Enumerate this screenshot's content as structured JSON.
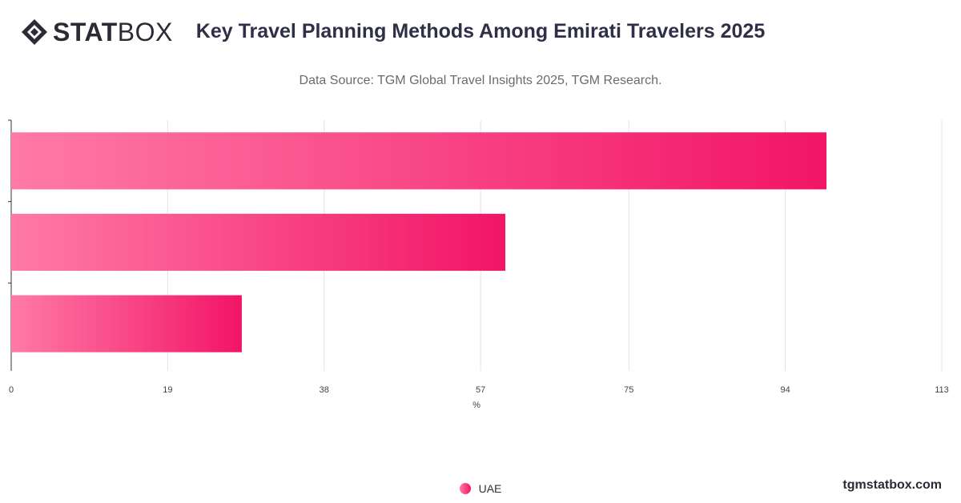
{
  "brand": {
    "logo_name": "statbox-diamond-logo",
    "logo_text_bold": "STAT",
    "logo_text_light": "BOX",
    "watermark": "tgmstatbox.com"
  },
  "header": {
    "title": "Key Travel Planning Methods Among Emirati Travelers 2025",
    "subtitle": "Data Source: TGM Global Travel Insights 2025, TGM Research."
  },
  "colors": {
    "bar_start": "#ff7aa6",
    "bar_end": "#f21566",
    "grid": "#e3e3e3",
    "axis": "#333333",
    "tick_text": "#444444"
  },
  "chart_data": {
    "type": "bar",
    "orientation": "horizontal",
    "categories": [
      "",
      "",
      ""
    ],
    "series": [
      {
        "name": "UAE",
        "values": [
          99,
          60,
          28
        ]
      }
    ],
    "xlabel": "%",
    "ylabel": "",
    "xlim": [
      0,
      113
    ],
    "x_ticks": [
      "0",
      "19",
      "38",
      "57",
      "75",
      "94",
      "113"
    ],
    "grid": true,
    "legend": "bottom-center"
  }
}
